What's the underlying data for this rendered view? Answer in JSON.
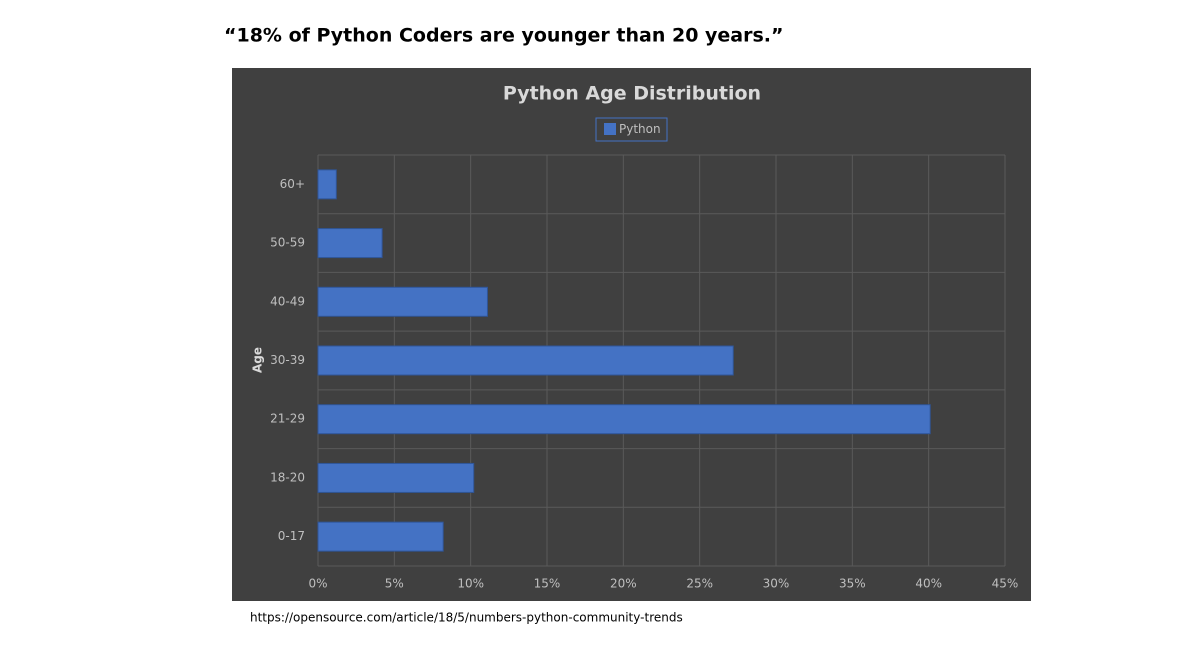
{
  "headline": "“18% of Python Coders are younger than 20 years.”",
  "source": "https://opensource.com/article/18/5/numbers-python-community-trends",
  "chart_data": {
    "type": "hbar",
    "title": "Python Age Distribution",
    "y_label": "Age",
    "categories": [
      "0-17",
      "18-20",
      "21-29",
      "30-39",
      "40-49",
      "50-59",
      "60+"
    ],
    "series": [
      {
        "name": "Python",
        "color": "#4472c4",
        "values": [
          8.2,
          10.2,
          40.1,
          27.2,
          11.1,
          4.2,
          1.2
        ]
      }
    ],
    "xlim": [
      0,
      45
    ],
    "xticks": [
      {
        "value": 0,
        "label": "0%"
      },
      {
        "value": 5,
        "label": "5%"
      },
      {
        "value": 10,
        "label": "10%"
      },
      {
        "value": 15,
        "label": "15%"
      },
      {
        "value": 20,
        "label": "20%"
      },
      {
        "value": 25,
        "label": "25%"
      },
      {
        "value": 30,
        "label": "30%"
      },
      {
        "value": 35,
        "label": "35%"
      },
      {
        "value": 40,
        "label": "40%"
      },
      {
        "value": 45,
        "label": "45%"
      }
    ],
    "grid": true,
    "legend": "top"
  }
}
